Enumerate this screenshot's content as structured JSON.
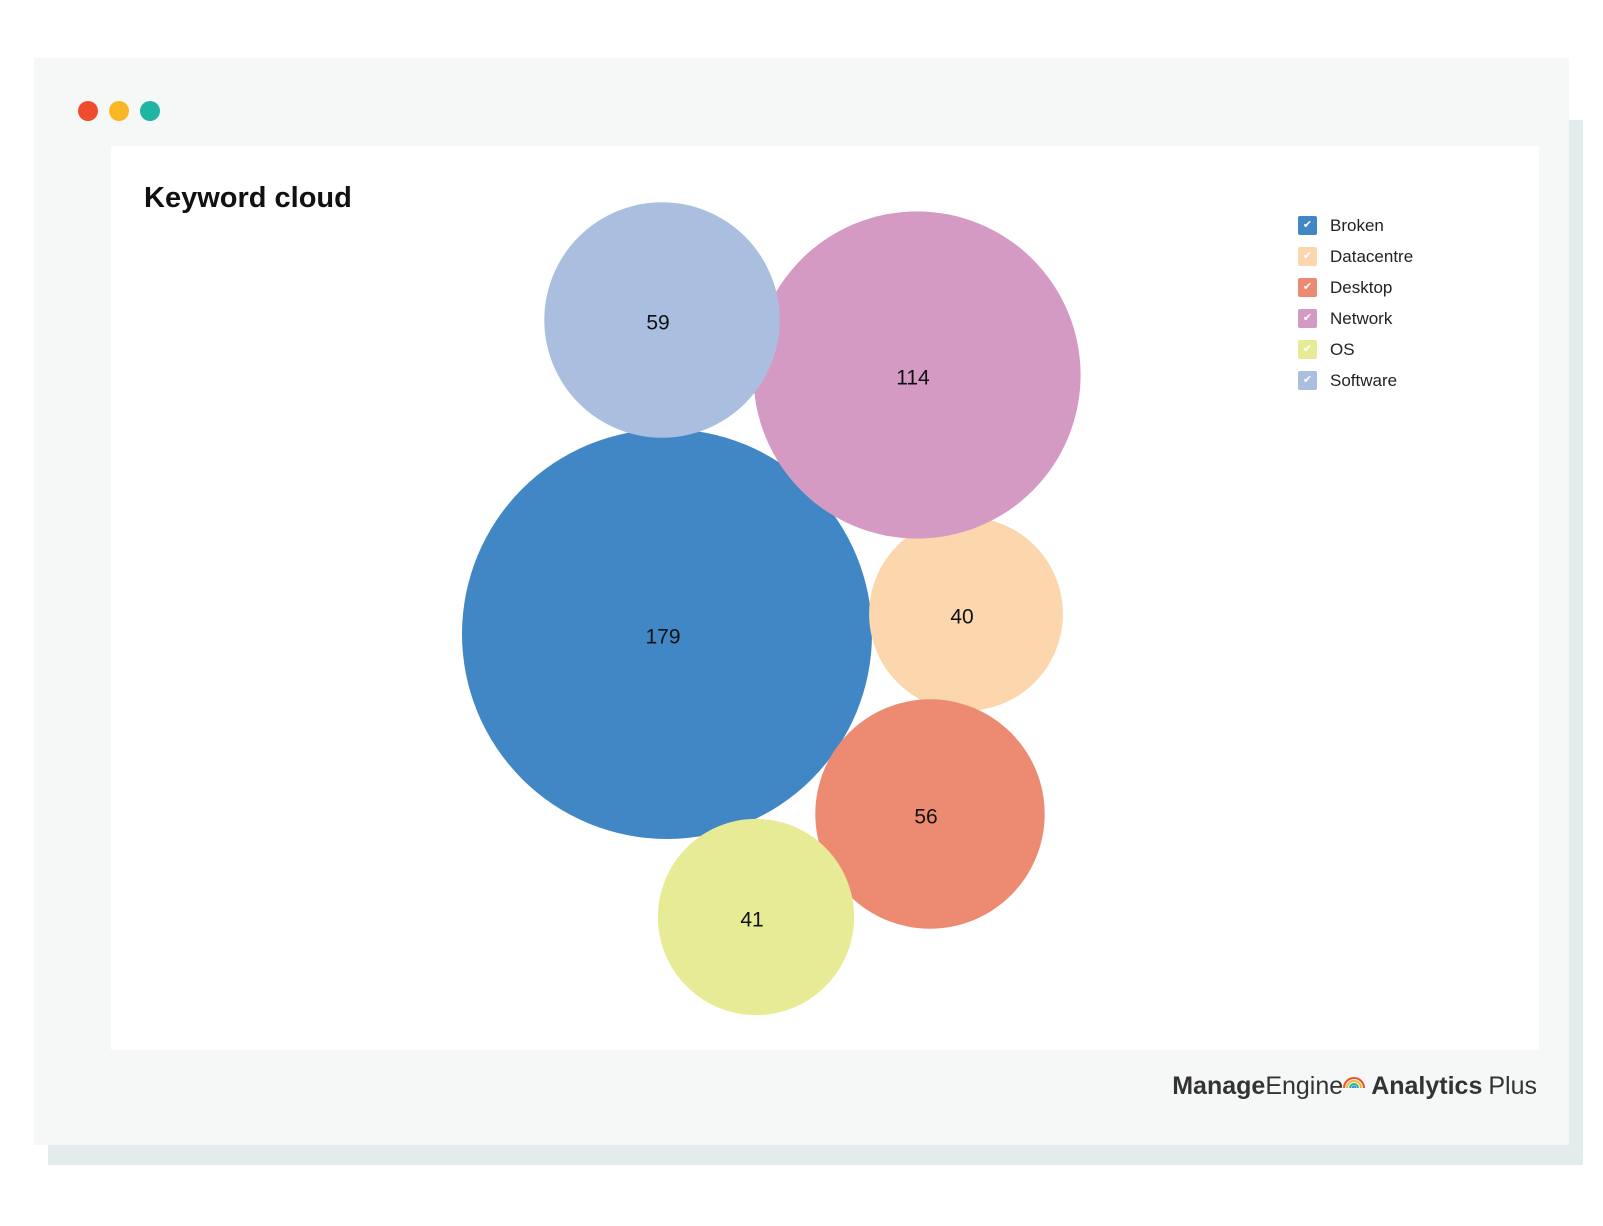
{
  "window": {
    "controls": [
      {
        "name": "close",
        "color": "#ef4d2d"
      },
      {
        "name": "minimize",
        "color": "#f8b825"
      },
      {
        "name": "maximize",
        "color": "#1fb5a2"
      }
    ]
  },
  "brand": {
    "part1_bold": "Manage",
    "part1_light": "Engine",
    "part2_bold": "Analytics",
    "part2_light": "Plus"
  },
  "chart_data": {
    "type": "bubble",
    "title": "Keyword cloud",
    "legend_position": "top-right",
    "series": [
      {
        "name": "Broken",
        "value": 179,
        "color": "#4187c6"
      },
      {
        "name": "Datacentre",
        "value": 40,
        "color": "#fcd6ac"
      },
      {
        "name": "Desktop",
        "value": 56,
        "color": "#ed8b72"
      },
      {
        "name": "Network",
        "value": 114,
        "color": "#d49ac4"
      },
      {
        "name": "OS",
        "value": 41,
        "color": "#e8eb96"
      },
      {
        "name": "Software",
        "value": 59,
        "color": "#aabfdf"
      }
    ]
  }
}
